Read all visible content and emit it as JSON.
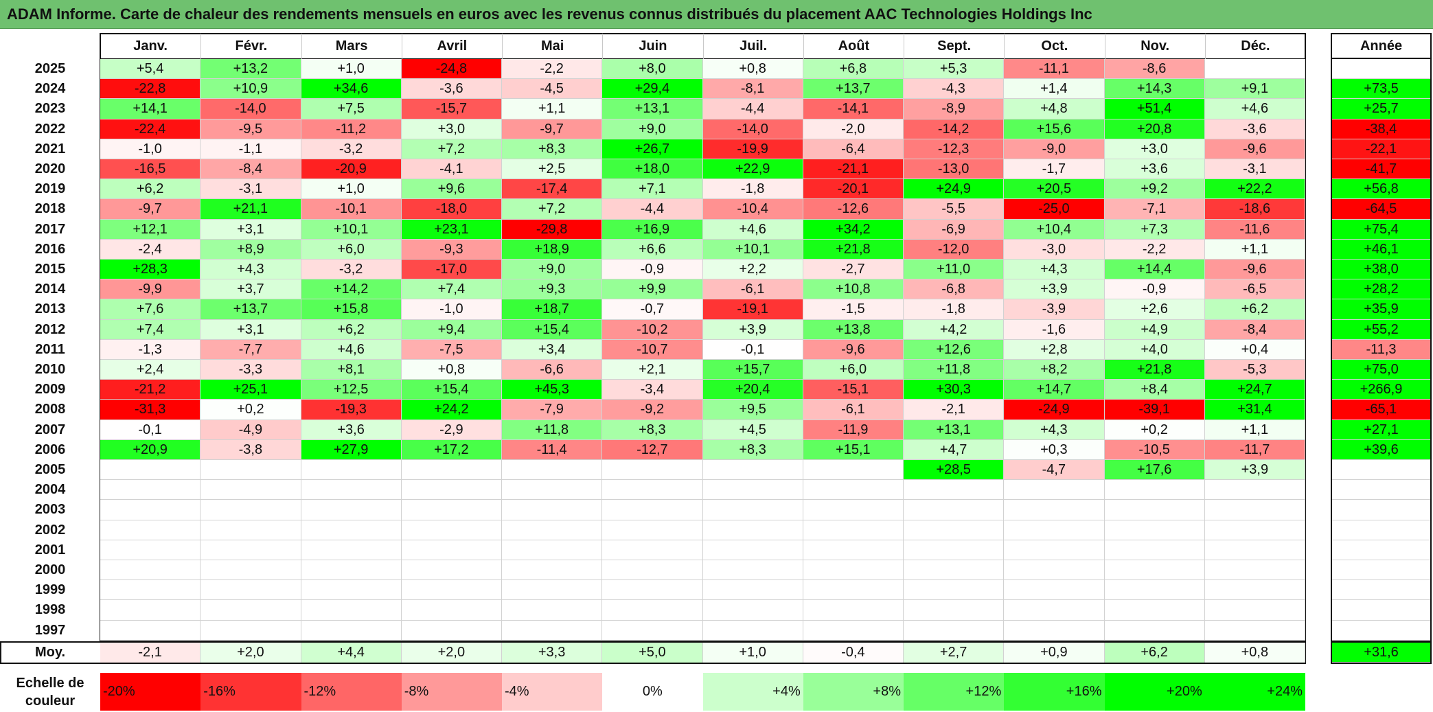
{
  "title": "ADAM Informe. Carte de chaleur des rendements mensuels en euros avec les revenus connus distribués du placement AAC Technologies Holdings Inc",
  "months": [
    "Janv.",
    "Févr.",
    "Mars",
    "Avril",
    "Mai",
    "Juin",
    "Juil.",
    "Août",
    "Sept.",
    "Oct.",
    "Nov.",
    "Déc."
  ],
  "year_header": "Année",
  "avg_label": "Moy.",
  "legend_label_line1": "Echelle de",
  "legend_label_line2": "couleur",
  "legend": [
    {
      "value": -20,
      "label": "-20%"
    },
    {
      "value": -16,
      "label": "-16%"
    },
    {
      "value": -12,
      "label": "-12%"
    },
    {
      "value": -8,
      "label": "-8%"
    },
    {
      "value": -4,
      "label": "-4%"
    },
    {
      "value": 0,
      "label": "0%"
    },
    {
      "value": 4,
      "label": "+4%"
    },
    {
      "value": 8,
      "label": "+8%"
    },
    {
      "value": 12,
      "label": "+12%"
    },
    {
      "value": 16,
      "label": "+16%"
    },
    {
      "value": 20,
      "label": "+20%"
    },
    {
      "value": 24,
      "label": "+24%"
    }
  ],
  "colors": {
    "negative_max": "#ff0000",
    "neutral": "#ffffff",
    "positive_max": "#00ff00",
    "title_bar": "#6fc16f"
  },
  "chart_data": {
    "type": "heatmap",
    "title": "ADAM Informe. Carte de chaleur des rendements mensuels en euros avec les revenus connus distribués du placement AAC Technologies Holdings Inc",
    "x": [
      "Janv.",
      "Févr.",
      "Mars",
      "Avril",
      "Mai",
      "Juin",
      "Juil.",
      "Août",
      "Sept.",
      "Oct.",
      "Nov.",
      "Déc."
    ],
    "rows": [
      {
        "year": "2025",
        "values": [
          "+5,4",
          "+13,2",
          "+1,0",
          "-24,8",
          "-2,2",
          "+8,0",
          "+0,8",
          "+6,8",
          "+5,3",
          "-11,1",
          "-8,6",
          ""
        ],
        "annual": ""
      },
      {
        "year": "2024",
        "values": [
          "-22,8",
          "+10,9",
          "+34,6",
          "-3,6",
          "-4,5",
          "+29,4",
          "-8,1",
          "+13,7",
          "-4,3",
          "+1,4",
          "+14,3",
          "+9,1"
        ],
        "annual": "+73,5"
      },
      {
        "year": "2023",
        "values": [
          "+14,1",
          "-14,0",
          "+7,5",
          "-15,7",
          "+1,1",
          "+13,1",
          "-4,4",
          "-14,1",
          "-8,9",
          "+4,8",
          "+51,4",
          "+4,6"
        ],
        "annual": "+25,7"
      },
      {
        "year": "2022",
        "values": [
          "-22,4",
          "-9,5",
          "-11,2",
          "+3,0",
          "-9,7",
          "+9,0",
          "-14,0",
          "-2,0",
          "-14,2",
          "+15,6",
          "+20,8",
          "-3,6"
        ],
        "annual": "-38,4"
      },
      {
        "year": "2021",
        "values": [
          "-1,0",
          "-1,1",
          "-3,2",
          "+7,2",
          "+8,3",
          "+26,7",
          "-19,9",
          "-6,4",
          "-12,3",
          "-9,0",
          "+3,0",
          "-9,6"
        ],
        "annual": "-22,1"
      },
      {
        "year": "2020",
        "values": [
          "-16,5",
          "-8,4",
          "-20,9",
          "-4,1",
          "+2,5",
          "+18,0",
          "+22,9",
          "-21,1",
          "-13,0",
          "-1,7",
          "+3,6",
          "-3,1"
        ],
        "annual": "-41,7"
      },
      {
        "year": "2019",
        "values": [
          "+6,2",
          "-3,1",
          "+1,0",
          "+9,6",
          "-17,4",
          "+7,1",
          "-1,8",
          "-20,1",
          "+24,9",
          "+20,5",
          "+9,2",
          "+22,2"
        ],
        "annual": "+56,8"
      },
      {
        "year": "2018",
        "values": [
          "-9,7",
          "+21,1",
          "-10,1",
          "-18,0",
          "+7,2",
          "-4,4",
          "-10,4",
          "-12,6",
          "-5,5",
          "-25,0",
          "-7,1",
          "-18,6"
        ],
        "annual": "-64,5"
      },
      {
        "year": "2017",
        "values": [
          "+12,1",
          "+3,1",
          "+10,1",
          "+23,1",
          "-29,8",
          "+16,9",
          "+4,6",
          "+34,2",
          "-6,9",
          "+10,4",
          "+7,3",
          "-11,6"
        ],
        "annual": "+75,4"
      },
      {
        "year": "2016",
        "values": [
          "-2,4",
          "+8,9",
          "+6,0",
          "-9,3",
          "+18,9",
          "+6,6",
          "+10,1",
          "+21,8",
          "-12,0",
          "-3,0",
          "-2,2",
          "+1,1"
        ],
        "annual": "+46,1"
      },
      {
        "year": "2015",
        "values": [
          "+28,3",
          "+4,3",
          "-3,2",
          "-17,0",
          "+9,0",
          "-0,9",
          "+2,2",
          "-2,7",
          "+11,0",
          "+4,3",
          "+14,4",
          "-9,6"
        ],
        "annual": "+38,0"
      },
      {
        "year": "2014",
        "values": [
          "-9,9",
          "+3,7",
          "+14,2",
          "+7,4",
          "+9,3",
          "+9,9",
          "-6,1",
          "+10,8",
          "-6,8",
          "+3,9",
          "-0,9",
          "-6,5"
        ],
        "annual": "+28,2"
      },
      {
        "year": "2013",
        "values": [
          "+7,6",
          "+13,7",
          "+15,8",
          "-1,0",
          "+18,7",
          "-0,7",
          "-19,1",
          "-1,5",
          "-1,8",
          "-3,9",
          "+2,6",
          "+6,2"
        ],
        "annual": "+35,9"
      },
      {
        "year": "2012",
        "values": [
          "+7,4",
          "+3,1",
          "+6,2",
          "+9,4",
          "+15,4",
          "-10,2",
          "+3,9",
          "+13,8",
          "+4,2",
          "-1,6",
          "+4,9",
          "-8,4"
        ],
        "annual": "+55,2"
      },
      {
        "year": "2011",
        "values": [
          "-1,3",
          "-7,7",
          "+4,6",
          "-7,5",
          "+3,4",
          "-10,7",
          "-0,1",
          "-9,6",
          "+12,6",
          "+2,8",
          "+4,0",
          "+0,4"
        ],
        "annual": "-11,3"
      },
      {
        "year": "2010",
        "values": [
          "+2,4",
          "-3,3",
          "+8,1",
          "+0,8",
          "-6,6",
          "+2,1",
          "+15,7",
          "+6,0",
          "+11,8",
          "+8,2",
          "+21,8",
          "-5,3"
        ],
        "annual": "+75,0"
      },
      {
        "year": "2009",
        "values": [
          "-21,2",
          "+25,1",
          "+12,5",
          "+15,4",
          "+45,3",
          "-3,4",
          "+20,4",
          "-15,1",
          "+30,3",
          "+14,7",
          "+8,4",
          "+24,7"
        ],
        "annual": "+266,9"
      },
      {
        "year": "2008",
        "values": [
          "-31,3",
          "+0,2",
          "-19,3",
          "+24,2",
          "-7,9",
          "-9,2",
          "+9,5",
          "-6,1",
          "-2,1",
          "-24,9",
          "-39,1",
          "+31,4"
        ],
        "annual": "-65,1"
      },
      {
        "year": "2007",
        "values": [
          "-0,1",
          "-4,9",
          "+3,6",
          "-2,9",
          "+11,8",
          "+8,3",
          "+4,5",
          "-11,9",
          "+13,1",
          "+4,3",
          "+0,2",
          "+1,1"
        ],
        "annual": "+27,1"
      },
      {
        "year": "2006",
        "values": [
          "+20,9",
          "-3,8",
          "+27,9",
          "+17,2",
          "-11,4",
          "-12,7",
          "+8,3",
          "+15,1",
          "+4,7",
          "+0,3",
          "-10,5",
          "-11,7"
        ],
        "annual": "+39,6"
      },
      {
        "year": "2005",
        "values": [
          "",
          "",
          "",
          "",
          "",
          "",
          "",
          "",
          "+28,5",
          "-4,7",
          "+17,6",
          "+3,9"
        ],
        "annual": ""
      },
      {
        "year": "2004",
        "values": [
          "",
          "",
          "",
          "",
          "",
          "",
          "",
          "",
          "",
          "",
          "",
          ""
        ],
        "annual": ""
      },
      {
        "year": "2003",
        "values": [
          "",
          "",
          "",
          "",
          "",
          "",
          "",
          "",
          "",
          "",
          "",
          ""
        ],
        "annual": ""
      },
      {
        "year": "2002",
        "values": [
          "",
          "",
          "",
          "",
          "",
          "",
          "",
          "",
          "",
          "",
          "",
          ""
        ],
        "annual": ""
      },
      {
        "year": "2001",
        "values": [
          "",
          "",
          "",
          "",
          "",
          "",
          "",
          "",
          "",
          "",
          "",
          ""
        ],
        "annual": ""
      },
      {
        "year": "2000",
        "values": [
          "",
          "",
          "",
          "",
          "",
          "",
          "",
          "",
          "",
          "",
          "",
          ""
        ],
        "annual": ""
      },
      {
        "year": "1999",
        "values": [
          "",
          "",
          "",
          "",
          "",
          "",
          "",
          "",
          "",
          "",
          "",
          ""
        ],
        "annual": ""
      },
      {
        "year": "1998",
        "values": [
          "",
          "",
          "",
          "",
          "",
          "",
          "",
          "",
          "",
          "",
          "",
          ""
        ],
        "annual": ""
      },
      {
        "year": "1997",
        "values": [
          "",
          "",
          "",
          "",
          "",
          "",
          "",
          "",
          "",
          "",
          "",
          ""
        ],
        "annual": ""
      }
    ],
    "averages": [
      "-2,1",
      "+2,0",
      "+4,4",
      "+2,0",
      "+3,3",
      "+5,0",
      "+1,0",
      "-0,4",
      "+2,7",
      "+0,9",
      "+6,2",
      "+0,8"
    ],
    "average_annual": "+31,6"
  }
}
